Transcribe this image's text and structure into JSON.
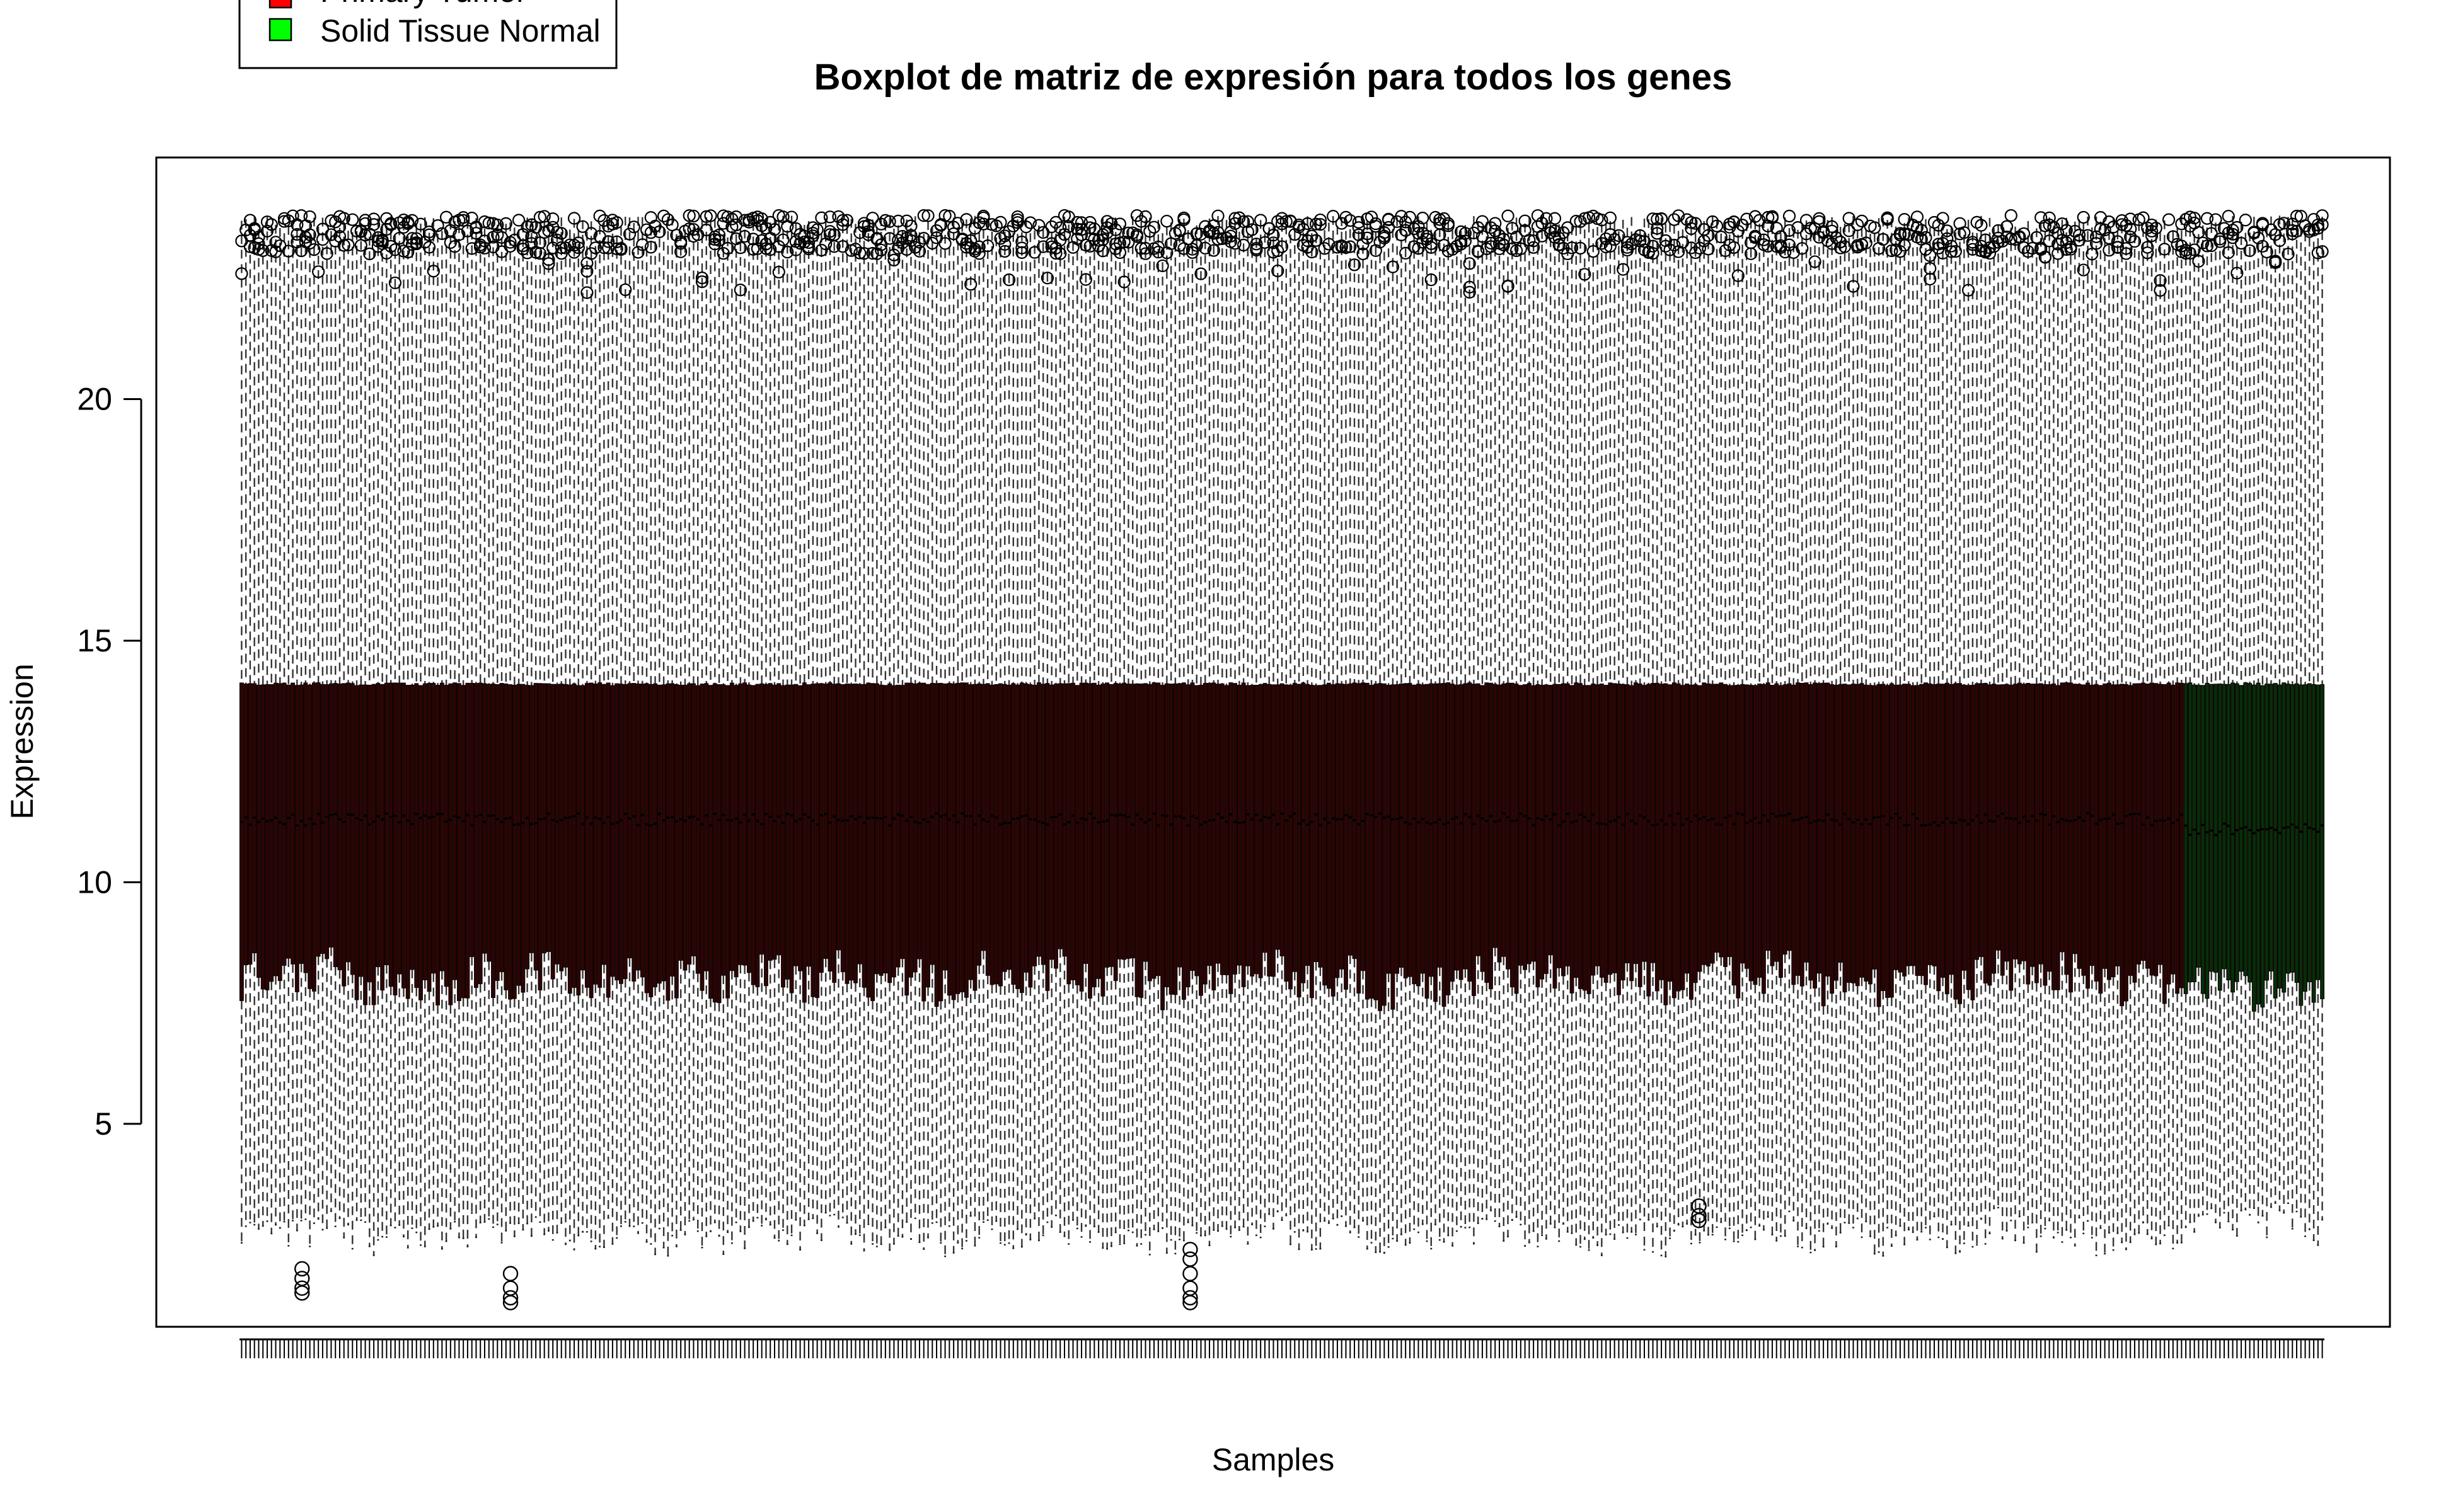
{
  "chart_data": {
    "type": "boxplot",
    "title": "Boxplot de matriz de expresión para todos los genes",
    "xlabel": "Samples",
    "ylabel": "Expression",
    "ylim": [
      0.8,
      25
    ],
    "yticks": [
      5,
      10,
      15,
      20
    ],
    "grid": false,
    "legend_position": "top-left",
    "legend": [
      {
        "label": "Primary Tumor",
        "color": "#ff0000"
      },
      {
        "label": "Solid Tissue Normal",
        "color": "#00ff00"
      }
    ],
    "groups": [
      {
        "name": "Primary Tumor",
        "n_samples": 456,
        "box_fill": "#2b0505",
        "summary": {
          "lower_whisker": 2.6,
          "q1": 8.0,
          "median": 11.3,
          "q3": 14.1,
          "upper_whisker": 23.6,
          "outlier_max": 23.8,
          "outlier_min": 1.1
        }
      },
      {
        "name": "Solid Tissue Normal",
        "n_samples": 33,
        "box_fill": "#04300a",
        "summary": {
          "lower_whisker": 2.8,
          "q1": 7.8,
          "median": 11.1,
          "q3": 14.1,
          "upper_whisker": 23.6,
          "outlier_max": 23.8,
          "outlier_min": 2.3
        }
      }
    ]
  }
}
